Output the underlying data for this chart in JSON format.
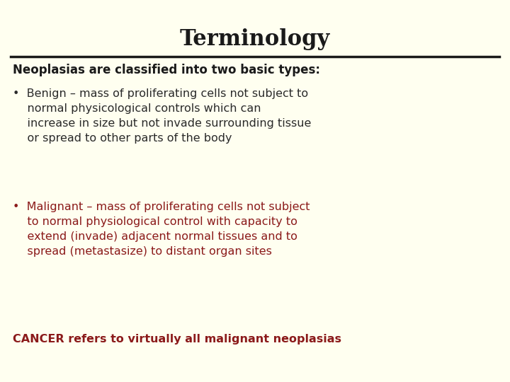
{
  "title": "Terminology",
  "background_color": "#fffff0",
  "title_color": "#1a1a1a",
  "title_fontsize": 22,
  "line_color": "#1a1a1a",
  "subtitle": "Neoplasias are classified into two basic types:",
  "subtitle_color": "#1a1a1a",
  "subtitle_fontsize": 12,
  "benign_text": "•  Benign – mass of proliferating cells not subject to\n    normal physicological controls which can\n    increase in size but not invade surrounding tissue\n    or spread to other parts of the body",
  "benign_color": "#2a2a2a",
  "benign_fontsize": 11.5,
  "malignant_text": "•  Malignant – mass of proliferating cells not subject\n    to normal physiological control with capacity to\n    extend (invade) adjacent normal tissues and to\n    spread (metastasize) to distant organ sites",
  "malignant_color": "#8b1a1a",
  "malignant_fontsize": 11.5,
  "cancer_text": "CANCER refers to virtually all malignant neoplasias",
  "cancer_color": "#8b1a1a",
  "cancer_fontsize": 11.5
}
